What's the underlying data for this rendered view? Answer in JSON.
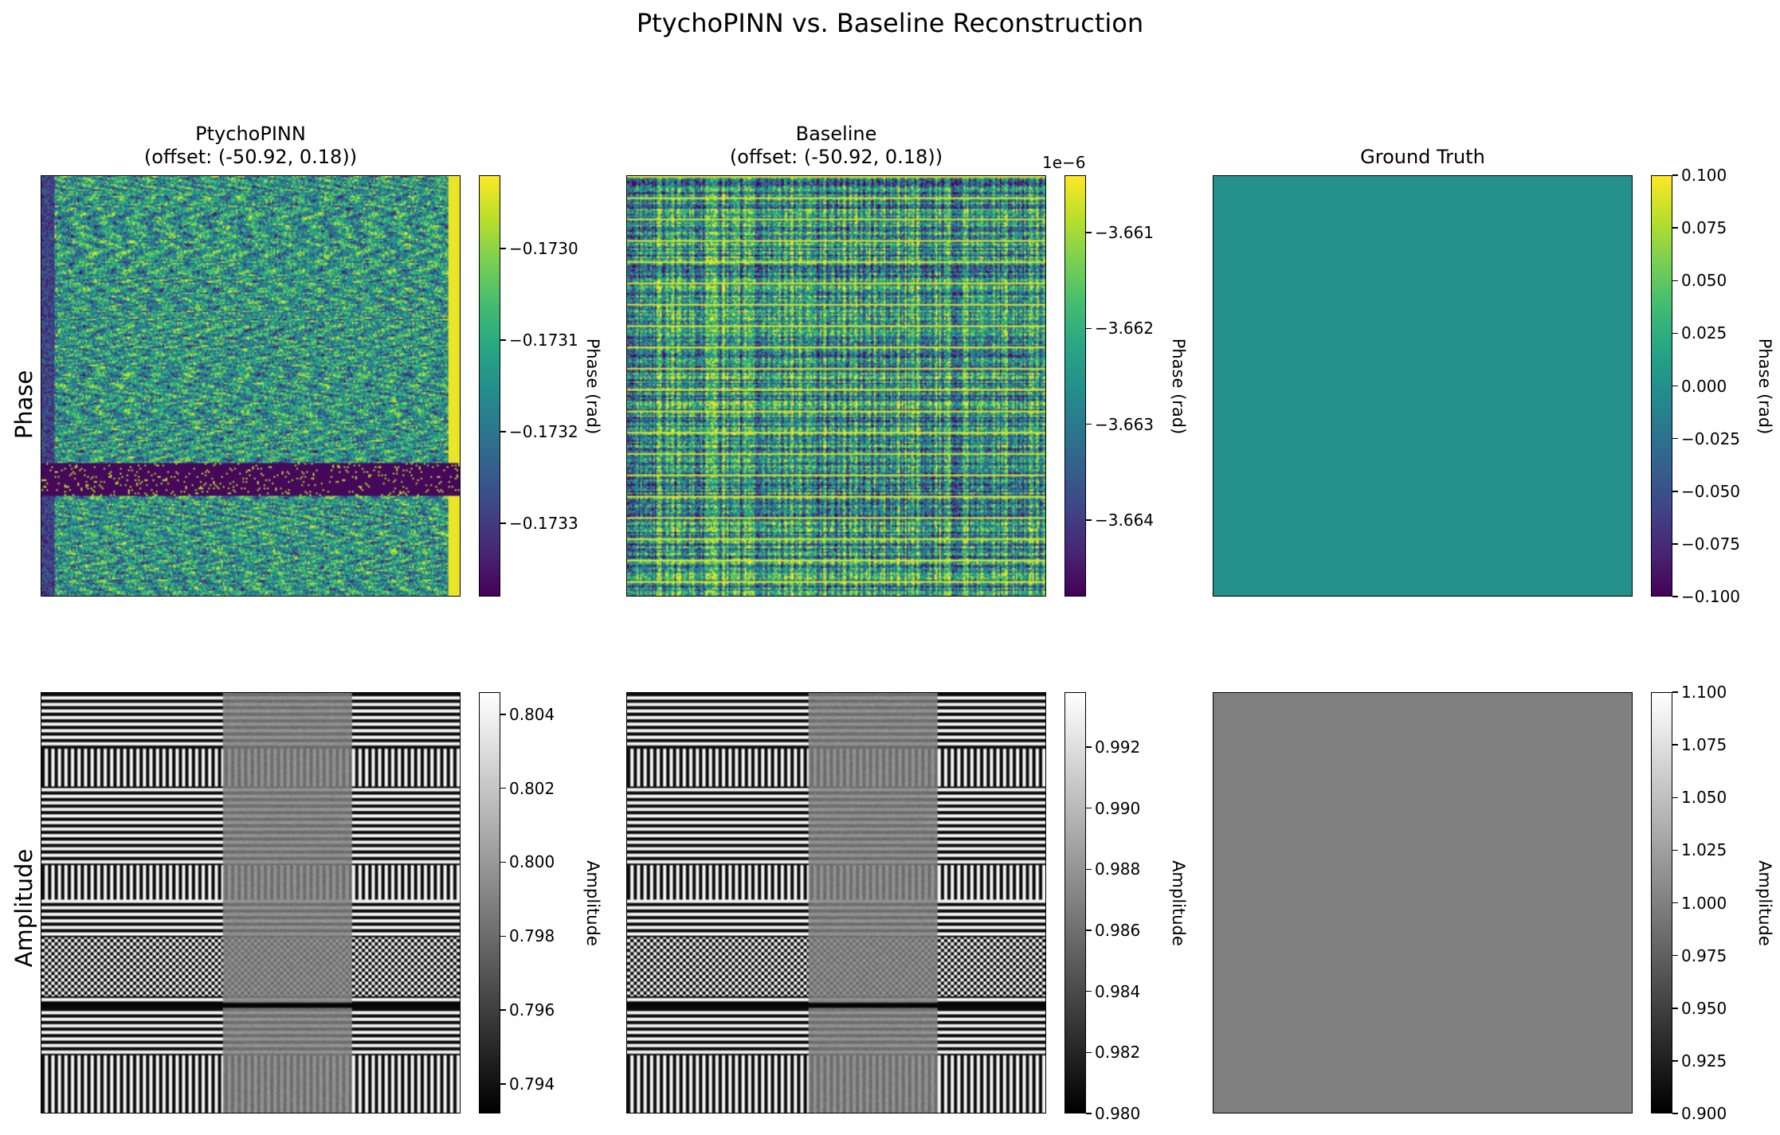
{
  "chart_data": {
    "type": "heatmap",
    "title": "PtychoPINN vs. Baseline Reconstruction",
    "row_labels": [
      "Phase",
      "Amplitude"
    ],
    "colormaps": {
      "Phase": "viridis",
      "Amplitude": "gray"
    },
    "panels": [
      {
        "id": "pinn-phase",
        "row": "Phase",
        "title": "PtychoPINN\n(offset: (-50.92, 0.18))",
        "colorbar_label": "Phase (rad)",
        "colorbar_multiplier": "",
        "vmin": -0.17338,
        "vmax": -0.17292,
        "ticks": [
          -0.173,
          -0.1731,
          -0.1732,
          -0.1733
        ],
        "tick_labels": [
          "−0.1730",
          "−0.1731",
          "−0.1732",
          "−0.1733"
        ],
        "pattern": "noisy-horizontal-band"
      },
      {
        "id": "baseline-phase",
        "row": "Phase",
        "title": "Baseline\n(offset: (-50.92, 0.18))",
        "colorbar_label": "Phase (rad)",
        "colorbar_multiplier": "1e−6",
        "vmin": -3.6648,
        "vmax": -3.6604,
        "ticks": [
          -3.661,
          -3.662,
          -3.663,
          -3.664
        ],
        "tick_labels": [
          "−3.661",
          "−3.662",
          "−3.663",
          "−3.664"
        ],
        "pattern": "grid-stripes"
      },
      {
        "id": "truth-phase",
        "row": "Phase",
        "title": "Ground Truth",
        "colorbar_label": "Phase (rad)",
        "colorbar_multiplier": "",
        "vmin": -0.1,
        "vmax": 0.1,
        "ticks": [
          0.1,
          0.075,
          0.05,
          0.025,
          0.0,
          -0.025,
          -0.05,
          -0.075,
          -0.1
        ],
        "tick_labels": [
          "0.100",
          "0.075",
          "0.050",
          "0.025",
          "0.000",
          "−0.025",
          "−0.050",
          "−0.075",
          "−0.100"
        ],
        "pattern": "uniform",
        "uniform_value": 0.0
      },
      {
        "id": "pinn-amp",
        "row": "Amplitude",
        "title": "",
        "colorbar_label": "Amplitude",
        "colorbar_multiplier": "",
        "vmin": 0.7932,
        "vmax": 0.8046,
        "ticks": [
          0.804,
          0.802,
          0.8,
          0.798,
          0.796,
          0.794
        ],
        "tick_labels": [
          "0.804",
          "0.802",
          "0.800",
          "0.798",
          "0.796",
          "0.794"
        ],
        "pattern": "test-chart"
      },
      {
        "id": "baseline-amp",
        "row": "Amplitude",
        "title": "",
        "colorbar_label": "Amplitude",
        "colorbar_multiplier": "",
        "vmin": 0.98,
        "vmax": 0.9938,
        "ticks": [
          0.992,
          0.99,
          0.988,
          0.986,
          0.984,
          0.982,
          0.98
        ],
        "tick_labels": [
          "0.992",
          "0.990",
          "0.988",
          "0.986",
          "0.984",
          "0.982",
          "0.980"
        ],
        "pattern": "test-chart"
      },
      {
        "id": "truth-amp",
        "row": "Amplitude",
        "title": "",
        "colorbar_label": "Amplitude",
        "colorbar_multiplier": "",
        "vmin": 0.9,
        "vmax": 1.1,
        "ticks": [
          1.1,
          1.075,
          1.05,
          1.025,
          1.0,
          0.975,
          0.95,
          0.925,
          0.9
        ],
        "tick_labels": [
          "1.100",
          "1.075",
          "1.050",
          "1.025",
          "1.000",
          "0.975",
          "0.950",
          "0.925",
          "0.900"
        ],
        "pattern": "uniform",
        "uniform_value": 1.0
      }
    ]
  }
}
